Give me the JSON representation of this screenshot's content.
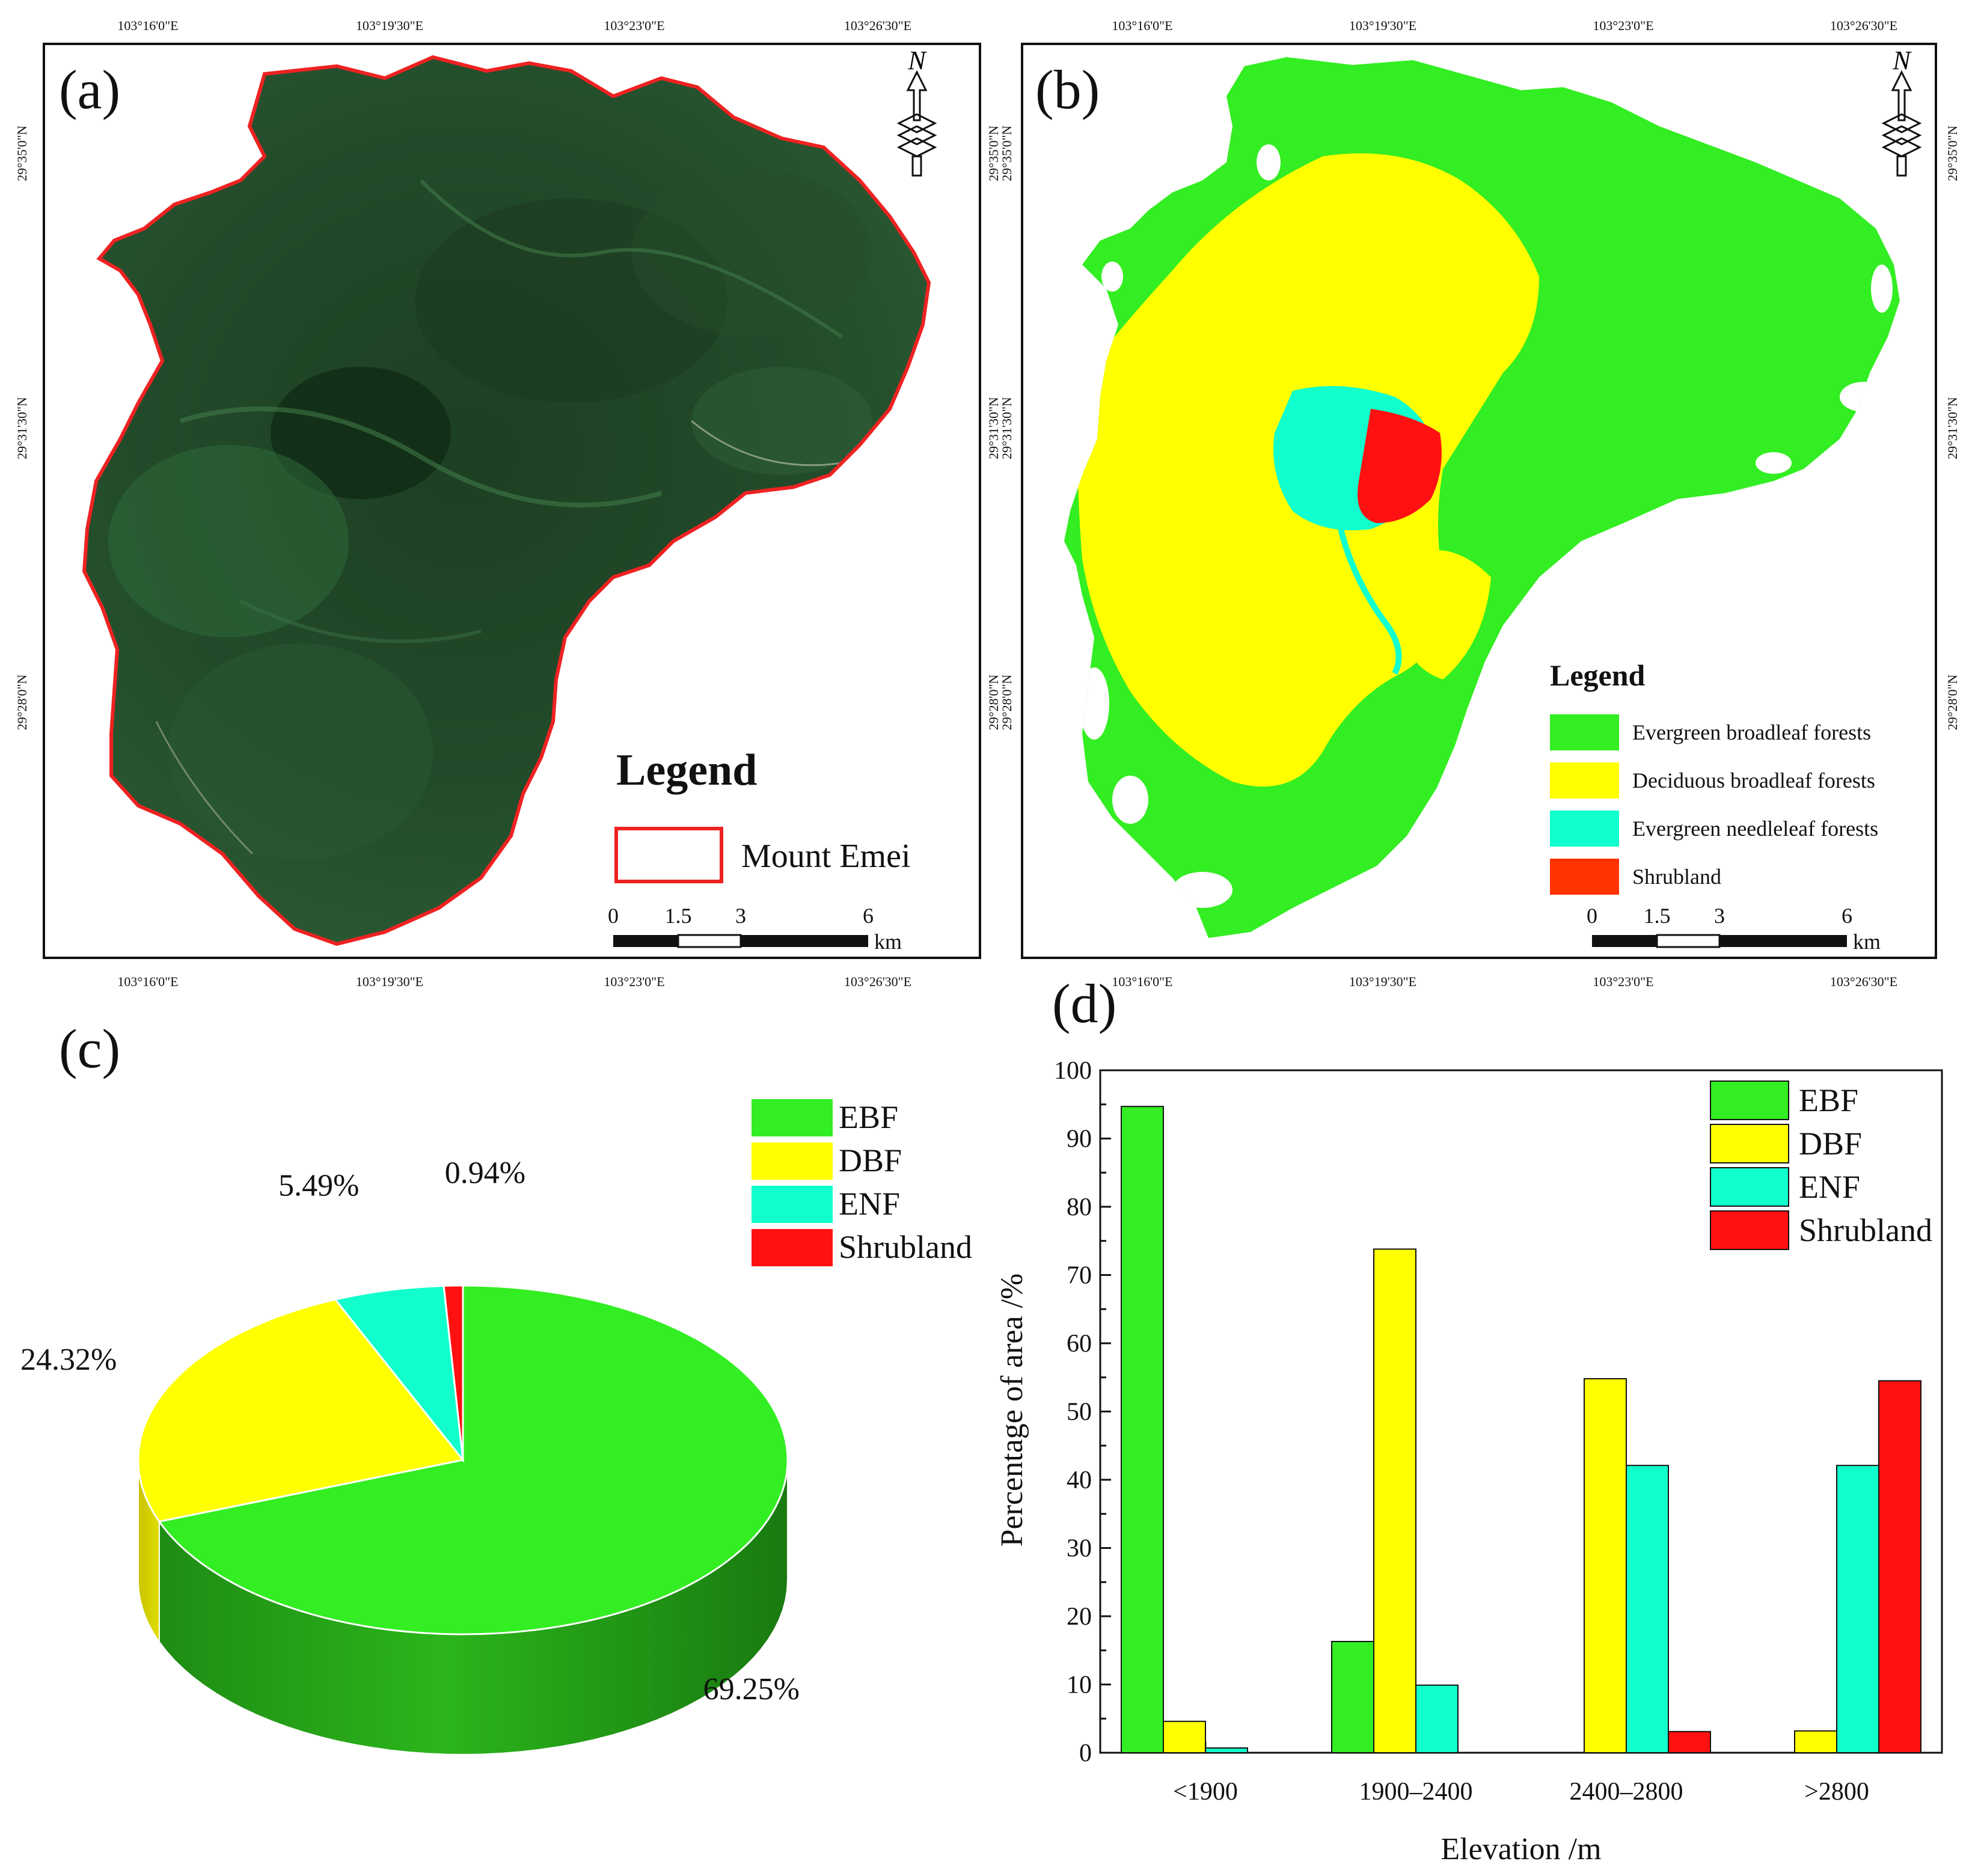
{
  "colors": {
    "ebf": "#33ee22",
    "dbf": "#ffff00",
    "enf": "#11ffcc",
    "shrub": "#ff1111",
    "shrub_map": "#ff3300",
    "boundary": "#ee2222"
  },
  "panel_a": {
    "label": "(a)",
    "top_lon": [
      "103°16'0\"E",
      "103°19'30\"E",
      "103°23'0\"E",
      "103°26'30\"E"
    ],
    "bottom_lon": [
      "103°16'0\"E",
      "103°19'30\"E",
      "103°23'0\"E",
      "103°26'30\"E"
    ],
    "left_lat": [
      "29°35'0\"N",
      "29°31'30\"N",
      "29°28'0\"N"
    ],
    "right_lat": [
      "29°35'0\"N",
      "29°31'30\"N",
      "29°28'0\"N"
    ],
    "north": "N",
    "legend_title": "Legend",
    "legend_item": "Mount Emei",
    "scale_ticks": [
      "0",
      "1.5",
      "3",
      "6"
    ],
    "scale_unit": "km"
  },
  "panel_b": {
    "label": "(b)",
    "top_lon": [
      "103°16'0\"E",
      "103°19'30\"E",
      "103°23'0\"E",
      "103°26'30\"E"
    ],
    "bottom_lon": [
      "103°16'0\"E",
      "103°19'30\"E",
      "103°23'0\"E",
      "103°26'30\"E"
    ],
    "left_lat": [
      "29°35'0\"N",
      "29°31'30\"N",
      "29°28'0\"N"
    ],
    "right_lat": [
      "29°35'0\"N",
      "29°31'30\"N",
      "29°28'0\"N"
    ],
    "north": "N",
    "legend_title": "Legend",
    "legend_items": [
      "Evergreen broadleaf forests",
      "Deciduous broadleaf forests",
      "Evergreen needleleaf forests",
      "Shrubland"
    ],
    "scale_ticks": [
      "0",
      "1.5",
      "3",
      "6"
    ],
    "scale_unit": "km"
  },
  "chart_data": [
    {
      "type": "pie",
      "panel": "(c)",
      "categories": [
        "EBF",
        "DBF",
        "ENF",
        "Shrubland"
      ],
      "values": [
        69.25,
        24.32,
        5.49,
        0.94
      ],
      "labels": [
        "69.25%",
        "24.32%",
        "5.49%",
        "0.94%"
      ],
      "legend": [
        "EBF",
        "DBF",
        "ENF",
        "Shrubland"
      ]
    },
    {
      "type": "bar",
      "panel": "(d)",
      "categories": [
        "<1900",
        "1900–2400",
        "2400–2800",
        ">2800"
      ],
      "series": [
        {
          "name": "EBF",
          "values": [
            94.7,
            16.3,
            0,
            0
          ]
        },
        {
          "name": "DBF",
          "values": [
            4.6,
            73.8,
            54.8,
            3.2
          ]
        },
        {
          "name": "ENF",
          "values": [
            0.7,
            9.9,
            42.1,
            42.1
          ]
        },
        {
          "name": "Shrubland",
          "values": [
            0,
            0,
            3.1,
            54.5
          ]
        }
      ],
      "xlabel": "Elevation /m",
      "ylabel": "Percentage of area /%",
      "ylim": [
        0,
        100
      ],
      "yticks": [
        "0",
        "10",
        "20",
        "30",
        "40",
        "50",
        "60",
        "70",
        "80",
        "90",
        "100"
      ],
      "legend": [
        "EBF",
        "DBF",
        "ENF",
        "Shrubland"
      ]
    }
  ]
}
